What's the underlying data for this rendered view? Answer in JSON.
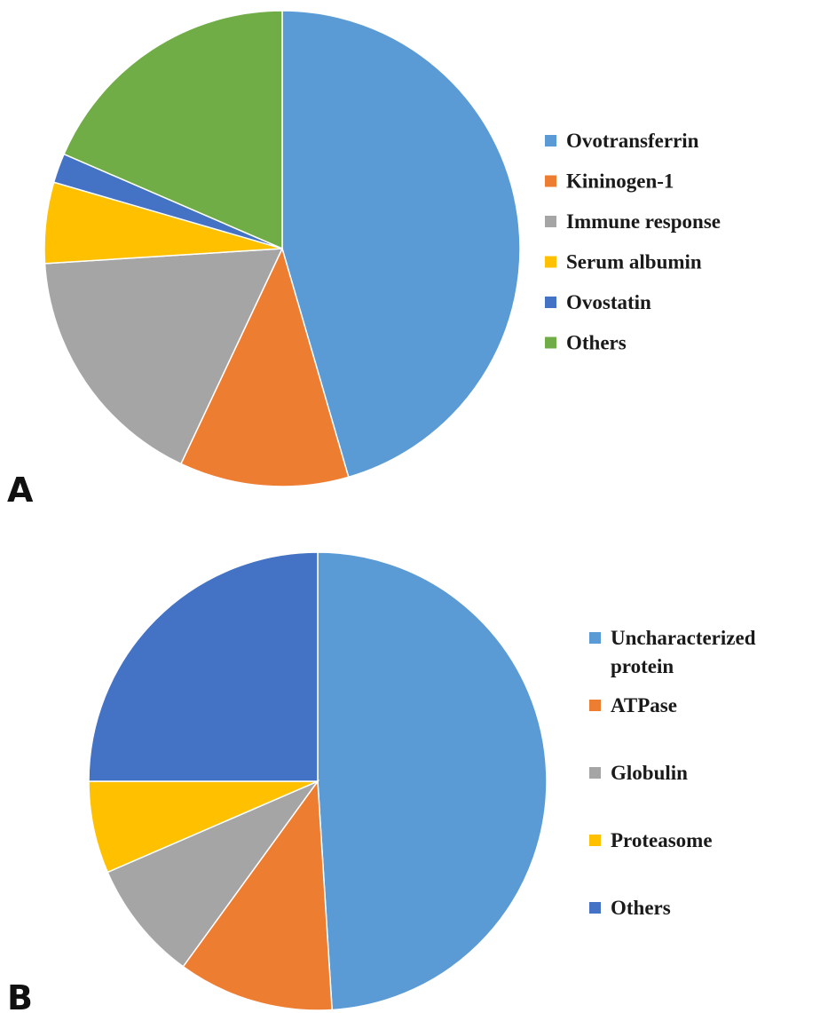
{
  "chart_data": [
    {
      "type": "pie",
      "panel_label": "A",
      "legend_position": "right",
      "slices": [
        {
          "label": "Ovotransferrin",
          "value": 45.5,
          "color": "#5b9bd5"
        },
        {
          "label": "Kininogen-1",
          "value": 11.5,
          "color": "#ed7d31"
        },
        {
          "label": "Immune response",
          "value": 17.0,
          "color": "#a5a5a5"
        },
        {
          "label": "Serum albumin",
          "value": 5.5,
          "color": "#ffc000"
        },
        {
          "label": "Ovostatin",
          "value": 2.0,
          "color": "#4472c4"
        },
        {
          "label": "Others",
          "value": 18.5,
          "color": "#70ad47"
        }
      ]
    },
    {
      "type": "pie",
      "panel_label": "B",
      "legend_position": "right",
      "slices": [
        {
          "label": [
            "Uncharacterized",
            "protein"
          ],
          "value": 49.0,
          "color": "#5b9bd5"
        },
        {
          "label": "ATPase",
          "value": 11.0,
          "color": "#ed7d31"
        },
        {
          "label": "Globulin",
          "value": 8.5,
          "color": "#a5a5a5"
        },
        {
          "label": "Proteasome",
          "value": 6.5,
          "color": "#ffc000"
        },
        {
          "label": "Others",
          "value": 25.0,
          "color": "#4472c4"
        }
      ]
    }
  ]
}
